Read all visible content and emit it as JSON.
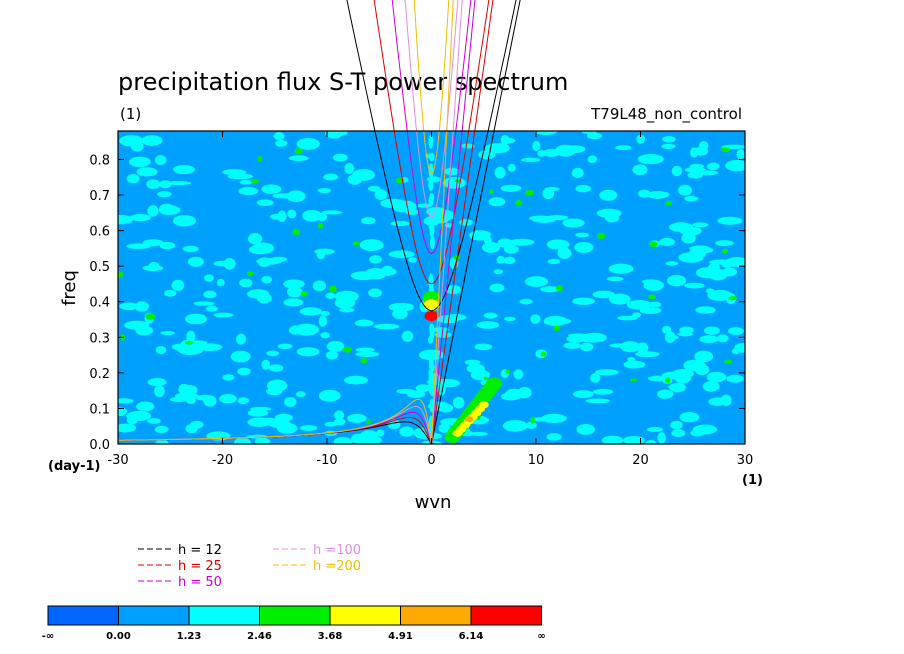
{
  "chart_data": {
    "type": "heatmap",
    "title": "precipitation flux S-T power spectrum",
    "units_left": "(1)",
    "subtitle_right": "T79L48_non_control",
    "xlabel": "wvn",
    "ylabel": "freq",
    "x_units": "(1)",
    "y_units": "(day-1)",
    "xlim": [
      -30,
      30
    ],
    "ylim": [
      0,
      0.88
    ],
    "x_ticks": [
      -30,
      -20,
      -10,
      0,
      10,
      20,
      30
    ],
    "y_ticks": [
      "0.0",
      "0.1",
      "0.2",
      "0.3",
      "0.4",
      "0.5",
      "0.6",
      "0.7",
      "0.8"
    ],
    "background_color": "#00a0ff",
    "dispersion_curves": [
      {
        "label": "h = 12",
        "h": 12,
        "color": "#000000"
      },
      {
        "label": "h = 25",
        "h": 25,
        "color": "#dd0000"
      },
      {
        "label": "h = 50",
        "h": 50,
        "color": "#cc00cc"
      },
      {
        "label": "h =100",
        "h": 100,
        "color": "#e090e0"
      },
      {
        "label": "h =200",
        "h": 200,
        "color": "#f0c000"
      }
    ],
    "colorbar": {
      "ticks": [
        "-∞",
        "0.00",
        "1.23",
        "2.46",
        "3.68",
        "4.91",
        "6.14",
        "∞"
      ],
      "colors": [
        "#0066ff",
        "#00a0ff",
        "#00ffff",
        "#00ee00",
        "#ffff00",
        "#ffaa00",
        "#ff0000"
      ]
    },
    "features": [
      {
        "kind": "peak",
        "x": 0,
        "y": 0.36,
        "level": 6
      },
      {
        "kind": "peak",
        "x": 0,
        "y": 0.39,
        "level": 4
      },
      {
        "kind": "peak",
        "x": 0,
        "y": 0.41,
        "level": 3
      },
      {
        "kind": "kelvin-band",
        "x_from": 2,
        "x_to": 6,
        "y_from": 0.02,
        "y_to": 0.17,
        "level": 5
      }
    ]
  }
}
